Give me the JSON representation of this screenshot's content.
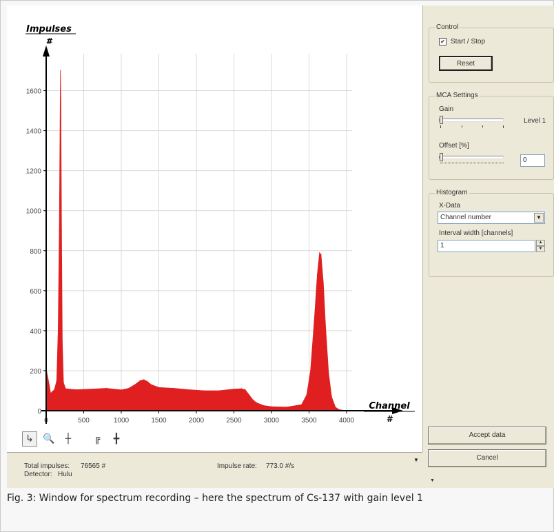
{
  "colors": {
    "bars": "#e02020",
    "grid": "#d9d9d9",
    "axis": "#000000",
    "panel": "#ece9d8"
  },
  "chart_data": {
    "type": "area",
    "x_axis": {
      "label": "Channel",
      "unit": "#",
      "range": [
        0,
        4000
      ],
      "ticks": [
        "0",
        "500",
        "1000",
        "1500",
        "2000",
        "2500",
        "3000",
        "3500",
        "4000"
      ]
    },
    "y_axis": {
      "label": "Impulses",
      "unit": "#",
      "range": [
        0,
        1750
      ],
      "ticks": [
        "0",
        "200",
        "400",
        "600",
        "800",
        "1000",
        "1200",
        "1400",
        "1600"
      ]
    },
    "grid": true,
    "series": [
      {
        "values": [
          [
            0,
            210
          ],
          [
            40,
            130
          ],
          [
            60,
            85
          ],
          [
            80,
            95
          ],
          [
            110,
            105
          ],
          [
            140,
            150
          ],
          [
            160,
            400
          ],
          [
            175,
            900
          ],
          [
            185,
            1450
          ],
          [
            190,
            1700
          ],
          [
            195,
            1550
          ],
          [
            205,
            900
          ],
          [
            215,
            350
          ],
          [
            230,
            140
          ],
          [
            260,
            110
          ],
          [
            400,
            105
          ],
          [
            600,
            108
          ],
          [
            800,
            112
          ],
          [
            1000,
            104
          ],
          [
            1100,
            112
          ],
          [
            1200,
            135
          ],
          [
            1250,
            150
          ],
          [
            1300,
            155
          ],
          [
            1350,
            145
          ],
          [
            1400,
            130
          ],
          [
            1500,
            116
          ],
          [
            1700,
            112
          ],
          [
            1900,
            105
          ],
          [
            2100,
            100
          ],
          [
            2300,
            100
          ],
          [
            2500,
            108
          ],
          [
            2600,
            110
          ],
          [
            2650,
            105
          ],
          [
            2700,
            80
          ],
          [
            2750,
            55
          ],
          [
            2800,
            40
          ],
          [
            2900,
            25
          ],
          [
            3000,
            20
          ],
          [
            3200,
            18
          ],
          [
            3400,
            30
          ],
          [
            3470,
            80
          ],
          [
            3520,
            200
          ],
          [
            3570,
            450
          ],
          [
            3610,
            680
          ],
          [
            3640,
            790
          ],
          [
            3660,
            780
          ],
          [
            3690,
            640
          ],
          [
            3720,
            420
          ],
          [
            3760,
            190
          ],
          [
            3800,
            70
          ],
          [
            3850,
            18
          ],
          [
            3900,
            5
          ],
          [
            4000,
            0
          ]
        ]
      }
    ]
  },
  "toolbar": {
    "icons": [
      "cursor-icon",
      "zoom-icon",
      "crosshair-icon",
      "zoom-fit-icon",
      "move-icon"
    ]
  },
  "toolbar_glyphs": [
    "↳",
    "🔍",
    "┼",
    "╔",
    "╋"
  ],
  "status": {
    "total_impulses_label": "Total impulses:",
    "total_impulses_value": "76565 #",
    "impulse_rate_label": "Impulse rate:",
    "impulse_rate_value": "773.0 #/s",
    "detector_label": "Detector:",
    "detector_value": "Hulu"
  },
  "control": {
    "title": "Control",
    "start_stop_label": "Start / Stop",
    "start_stop_checked": "✔",
    "reset_label": "Reset"
  },
  "mca": {
    "title": "MCA Settings",
    "gain_label": "Gain",
    "gain_level": "Level 1",
    "offset_label": "Offset [%]",
    "offset_value": "0"
  },
  "histogram": {
    "title": "Histogram",
    "xdata_label": "X-Data",
    "xdata_value": "Channel number",
    "interval_label": "Interval width [channels]",
    "interval_value": "1"
  },
  "actions": {
    "accept_label": "Accept data",
    "cancel_label": "Cancel"
  },
  "caption": "Fig. 3: Window for spectrum recording – here the spectrum of Cs-137 with gain level 1"
}
